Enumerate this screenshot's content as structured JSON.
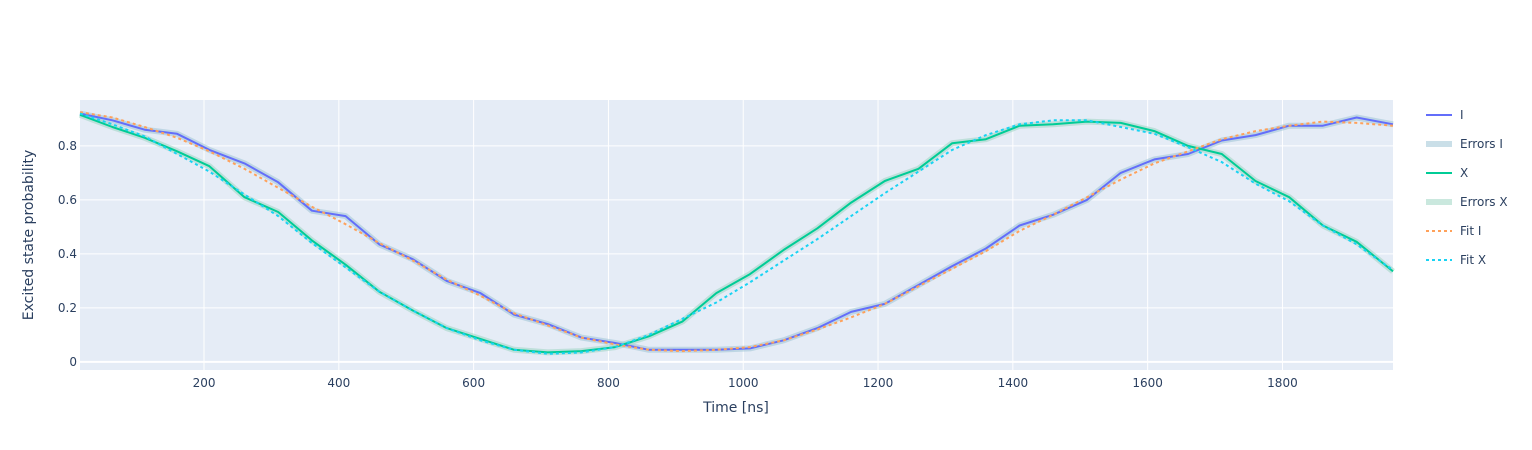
{
  "chart_data": {
    "type": "line",
    "xlabel": "Time [ns]",
    "ylabel": "Excited state probability",
    "xlim": [
      16,
      1964
    ],
    "ylim": [
      -0.03,
      0.97
    ],
    "xticks": [
      200,
      400,
      600,
      800,
      1000,
      1200,
      1400,
      1600,
      1800
    ],
    "yticks": [
      0,
      0.2,
      0.4,
      0.6,
      0.8
    ],
    "ytick_labels": [
      "0",
      "0.2",
      "0.4",
      "0.6",
      "0.8"
    ],
    "grid": true,
    "legend_position": "right",
    "x": [
      16,
      64,
      112,
      160,
      208,
      260,
      310,
      360,
      410,
      460,
      510,
      560,
      610,
      660,
      710,
      760,
      810,
      860,
      910,
      960,
      1010,
      1060,
      1110,
      1160,
      1210,
      1260,
      1310,
      1360,
      1410,
      1460,
      1510,
      1560,
      1610,
      1660,
      1710,
      1760,
      1810,
      1860,
      1910,
      1964
    ],
    "series": [
      {
        "name": "I",
        "kind": "data",
        "color": "#636efa",
        "values": [
          0.92,
          0.895,
          0.86,
          0.845,
          0.785,
          0.735,
          0.665,
          0.56,
          0.54,
          0.435,
          0.38,
          0.3,
          0.255,
          0.175,
          0.14,
          0.09,
          0.07,
          0.045,
          0.045,
          0.045,
          0.05,
          0.08,
          0.125,
          0.185,
          0.215,
          0.285,
          0.355,
          0.42,
          0.505,
          0.545,
          0.6,
          0.7,
          0.75,
          0.77,
          0.82,
          0.84,
          0.875,
          0.875,
          0.905,
          0.88
        ]
      },
      {
        "name": "Errors I",
        "kind": "error",
        "color": "#9fc5d6",
        "values": [
          0.92,
          0.895,
          0.86,
          0.845,
          0.785,
          0.735,
          0.665,
          0.56,
          0.54,
          0.435,
          0.38,
          0.3,
          0.255,
          0.175,
          0.14,
          0.09,
          0.07,
          0.045,
          0.045,
          0.045,
          0.05,
          0.08,
          0.125,
          0.185,
          0.215,
          0.285,
          0.355,
          0.42,
          0.505,
          0.545,
          0.6,
          0.7,
          0.75,
          0.77,
          0.82,
          0.84,
          0.875,
          0.875,
          0.905,
          0.88
        ]
      },
      {
        "name": "X",
        "kind": "data",
        "color": "#00cc96",
        "values": [
          0.915,
          0.87,
          0.83,
          0.78,
          0.725,
          0.61,
          0.555,
          0.45,
          0.36,
          0.26,
          0.19,
          0.125,
          0.085,
          0.045,
          0.035,
          0.04,
          0.055,
          0.095,
          0.15,
          0.255,
          0.325,
          0.415,
          0.495,
          0.59,
          0.67,
          0.715,
          0.81,
          0.825,
          0.875,
          0.88,
          0.89,
          0.885,
          0.855,
          0.8,
          0.77,
          0.67,
          0.61,
          0.505,
          0.445,
          0.335
        ]
      },
      {
        "name": "Errors X",
        "kind": "error",
        "color": "#9fd6c2",
        "values": [
          0.915,
          0.87,
          0.83,
          0.78,
          0.725,
          0.61,
          0.555,
          0.45,
          0.36,
          0.26,
          0.19,
          0.125,
          0.085,
          0.045,
          0.035,
          0.04,
          0.055,
          0.095,
          0.15,
          0.255,
          0.325,
          0.415,
          0.495,
          0.59,
          0.67,
          0.715,
          0.81,
          0.825,
          0.875,
          0.88,
          0.89,
          0.885,
          0.855,
          0.8,
          0.77,
          0.67,
          0.61,
          0.505,
          0.445,
          0.335
        ]
      },
      {
        "name": "Fit I",
        "kind": "fit",
        "color": "#ffa15a",
        "values": [
          0.925,
          0.905,
          0.87,
          0.83,
          0.78,
          0.715,
          0.645,
          0.575,
          0.51,
          0.44,
          0.375,
          0.305,
          0.245,
          0.18,
          0.135,
          0.09,
          0.065,
          0.045,
          0.04,
          0.045,
          0.055,
          0.08,
          0.12,
          0.165,
          0.215,
          0.28,
          0.345,
          0.41,
          0.485,
          0.545,
          0.61,
          0.675,
          0.735,
          0.78,
          0.825,
          0.855,
          0.875,
          0.89,
          0.885,
          0.875
        ]
      },
      {
        "name": "Fit X",
        "kind": "fit",
        "color": "#19d3f3",
        "values": [
          0.92,
          0.88,
          0.835,
          0.77,
          0.705,
          0.62,
          0.54,
          0.44,
          0.35,
          0.26,
          0.19,
          0.125,
          0.08,
          0.045,
          0.03,
          0.035,
          0.055,
          0.1,
          0.16,
          0.22,
          0.295,
          0.375,
          0.455,
          0.54,
          0.625,
          0.705,
          0.785,
          0.84,
          0.88,
          0.895,
          0.895,
          0.87,
          0.845,
          0.795,
          0.74,
          0.66,
          0.595,
          0.505,
          0.435,
          0.34
        ]
      }
    ]
  }
}
